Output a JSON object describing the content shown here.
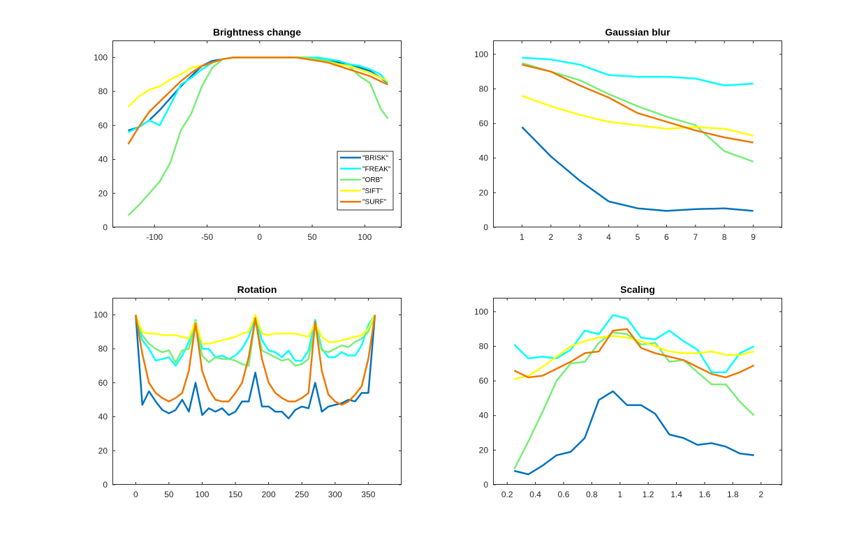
{
  "chart_data": [
    {
      "type": "line",
      "title": "Brightness change",
      "xlim": [
        -140,
        135
      ],
      "ylim": [
        0,
        110
      ],
      "xticks": [
        -100,
        -50,
        0,
        50,
        100
      ],
      "yticks": [
        0,
        20,
        40,
        60,
        80,
        100
      ],
      "legend": "bottom-right",
      "series": [
        {
          "name": "\"BRISK\"",
          "color": "#0072BD",
          "x": [
            -125,
            -115,
            -105,
            -95,
            -85,
            -75,
            -65,
            -55,
            -45,
            -35,
            -25,
            -15,
            -5,
            5,
            15,
            25,
            35,
            45,
            55,
            65,
            75,
            85,
            95,
            105,
            115,
            122
          ],
          "y": [
            57,
            59,
            63,
            69,
            76,
            83,
            89,
            95,
            98,
            99,
            100,
            100,
            100,
            100,
            100,
            100,
            100,
            100,
            99,
            98,
            97,
            96,
            94,
            92,
            88,
            85
          ]
        },
        {
          "name": "\"FREAK\"",
          "color": "#00FFFF",
          "x": [
            -125,
            -115,
            -105,
            -95,
            -85,
            -75,
            -65,
            -55,
            -45,
            -35,
            -25,
            -15,
            -5,
            5,
            15,
            25,
            35,
            45,
            55,
            65,
            75,
            85,
            95,
            105,
            115,
            122
          ],
          "y": [
            56,
            59,
            63,
            60,
            72,
            84,
            88,
            93,
            97,
            99,
            100,
            100,
            100,
            100,
            100,
            100,
            100,
            100,
            100,
            99,
            98,
            96,
            95,
            93,
            90,
            85
          ]
        },
        {
          "name": "\"ORB\"",
          "color": "#77EE77",
          "x": [
            -125,
            -115,
            -105,
            -95,
            -85,
            -75,
            -65,
            -55,
            -45,
            -35,
            -25,
            -15,
            -5,
            5,
            15,
            25,
            35,
            45,
            55,
            65,
            75,
            85,
            95,
            105,
            115,
            122
          ],
          "y": [
            7,
            13,
            20,
            27,
            38,
            57,
            67,
            83,
            94,
            99,
            100,
            100,
            100,
            100,
            100,
            100,
            100,
            100,
            99,
            98,
            96,
            95,
            89,
            85,
            70,
            64
          ]
        },
        {
          "name": "\"SIFT\"",
          "color": "#FFFF00",
          "x": [
            -125,
            -115,
            -105,
            -95,
            -85,
            -75,
            -65,
            -55,
            -45,
            -35,
            -25,
            -15,
            -5,
            5,
            15,
            25,
            35,
            45,
            55,
            65,
            75,
            85,
            95,
            105,
            115,
            122
          ],
          "y": [
            71,
            77,
            81,
            83,
            87,
            90,
            94,
            95,
            97,
            99,
            100,
            100,
            100,
            100,
            100,
            100,
            100,
            99,
            98,
            97,
            96,
            95,
            93,
            91,
            88,
            86
          ]
        },
        {
          "name": "\"SURF\"",
          "color": "#EE7700",
          "x": [
            -125,
            -115,
            -105,
            -95,
            -85,
            -75,
            -65,
            -55,
            -45,
            -35,
            -25,
            -15,
            -5,
            5,
            15,
            25,
            35,
            45,
            55,
            65,
            75,
            85,
            95,
            105,
            115,
            122
          ],
          "y": [
            49,
            59,
            68,
            74,
            80,
            86,
            91,
            95,
            97,
            99,
            100,
            100,
            100,
            100,
            100,
            100,
            100,
            99,
            98,
            97,
            95,
            93,
            91,
            89,
            86,
            84
          ]
        }
      ]
    },
    {
      "type": "line",
      "title": "Gaussian blur",
      "xlim": [
        0,
        10
      ],
      "ylim": [
        0,
        108
      ],
      "xticks": [
        1,
        2,
        3,
        4,
        5,
        6,
        7,
        8,
        9
      ],
      "yticks": [
        0,
        20,
        40,
        60,
        80,
        100
      ],
      "series": [
        {
          "color": "#0072BD",
          "x": [
            1,
            2,
            3,
            4,
            5,
            6,
            7,
            8,
            9
          ],
          "y": [
            58,
            41,
            27,
            15,
            11,
            9.5,
            10.5,
            11,
            9.5
          ]
        },
        {
          "color": "#00FFFF",
          "x": [
            1,
            2,
            3,
            4,
            5,
            6,
            7,
            8,
            9
          ],
          "y": [
            98,
            97,
            94,
            88,
            87,
            87,
            86,
            82,
            83
          ]
        },
        {
          "color": "#77EE77",
          "x": [
            1,
            2,
            3,
            4,
            5,
            6,
            7,
            8,
            9
          ],
          "y": [
            95,
            90,
            85,
            77,
            70,
            64,
            59,
            44,
            38
          ]
        },
        {
          "color": "#FFFF00",
          "x": [
            1,
            2,
            3,
            4,
            5,
            6,
            7,
            8,
            9
          ],
          "y": [
            76,
            70,
            65,
            61,
            59,
            57,
            58,
            57,
            53
          ]
        },
        {
          "color": "#EE7700",
          "x": [
            1,
            2,
            3,
            4,
            5,
            6,
            7,
            8,
            9
          ],
          "y": [
            94,
            90,
            82,
            75,
            66,
            61,
            56,
            52,
            49
          ]
        }
      ]
    },
    {
      "type": "line",
      "title": "Rotation",
      "xlim": [
        -35,
        400
      ],
      "ylim": [
        0,
        110
      ],
      "xticks": [
        0,
        50,
        100,
        150,
        200,
        250,
        300,
        350
      ],
      "yticks": [
        0,
        20,
        40,
        60,
        80,
        100
      ],
      "series": [
        {
          "color": "#0072BD",
          "x": [
            0,
            10,
            20,
            30,
            40,
            50,
            60,
            70,
            80,
            90,
            100,
            110,
            120,
            130,
            140,
            150,
            160,
            170,
            180,
            190,
            200,
            210,
            220,
            230,
            240,
            250,
            260,
            270,
            280,
            290,
            300,
            310,
            320,
            330,
            340,
            350,
            360
          ],
          "y": [
            100,
            47,
            55,
            49,
            44,
            42,
            44,
            50,
            43,
            60,
            41,
            45,
            43,
            45,
            41,
            43,
            49,
            49,
            66,
            46,
            46,
            43,
            43,
            39,
            44,
            46,
            45,
            60,
            43,
            46,
            47,
            48,
            50,
            49,
            54,
            54,
            100
          ]
        },
        {
          "color": "#00FFFF",
          "x": [
            0,
            10,
            20,
            30,
            40,
            50,
            60,
            70,
            80,
            90,
            100,
            110,
            120,
            130,
            140,
            150,
            160,
            170,
            180,
            190,
            200,
            210,
            220,
            230,
            240,
            250,
            260,
            270,
            280,
            290,
            300,
            310,
            320,
            330,
            340,
            350,
            360
          ],
          "y": [
            100,
            85,
            80,
            73,
            74,
            75,
            70,
            76,
            84,
            97,
            80,
            80,
            75,
            76,
            74,
            76,
            80,
            87,
            99,
            85,
            79,
            78,
            75,
            79,
            73,
            73,
            79,
            97,
            80,
            75,
            75,
            78,
            76,
            76,
            82,
            94,
            100
          ]
        },
        {
          "color": "#77EE77",
          "x": [
            0,
            10,
            20,
            30,
            40,
            50,
            60,
            70,
            80,
            90,
            100,
            110,
            120,
            130,
            140,
            150,
            160,
            170,
            180,
            190,
            200,
            210,
            220,
            230,
            240,
            250,
            260,
            270,
            280,
            290,
            300,
            310,
            320,
            330,
            340,
            350,
            360
          ],
          "y": [
            100,
            88,
            83,
            80,
            78,
            79,
            72,
            79,
            80,
            94,
            76,
            72,
            75,
            74,
            74,
            73,
            71,
            70,
            97,
            79,
            77,
            75,
            73,
            74,
            70,
            71,
            74,
            94,
            79,
            78,
            80,
            82,
            81,
            84,
            86,
            90,
            100
          ]
        },
        {
          "color": "#FFFF00",
          "x": [
            0,
            10,
            20,
            30,
            40,
            50,
            60,
            70,
            80,
            90,
            100,
            110,
            120,
            130,
            140,
            150,
            160,
            170,
            180,
            190,
            200,
            210,
            220,
            230,
            240,
            250,
            260,
            270,
            280,
            290,
            300,
            310,
            320,
            330,
            340,
            350,
            360
          ],
          "y": [
            100,
            90,
            89,
            89,
            88,
            88,
            88,
            87,
            86,
            96,
            83,
            83,
            84,
            85,
            86,
            87,
            89,
            90,
            100,
            89,
            88,
            89,
            89,
            89,
            89,
            88,
            87,
            95,
            87,
            84,
            84,
            85,
            86,
            87,
            88,
            92,
            100
          ]
        },
        {
          "color": "#EE7700",
          "x": [
            0,
            10,
            20,
            30,
            40,
            50,
            60,
            70,
            80,
            90,
            100,
            110,
            120,
            130,
            140,
            150,
            160,
            170,
            180,
            190,
            200,
            210,
            220,
            230,
            240,
            250,
            260,
            270,
            280,
            290,
            300,
            310,
            320,
            330,
            340,
            350,
            360
          ],
          "y": [
            100,
            77,
            60,
            54,
            51,
            49,
            51,
            54,
            67,
            95,
            67,
            56,
            50,
            49,
            49,
            54,
            60,
            75,
            98,
            74,
            60,
            54,
            51,
            49,
            49,
            51,
            54,
            96,
            67,
            53,
            49,
            47,
            49,
            53,
            58,
            74,
            100
          ]
        }
      ]
    },
    {
      "type": "line",
      "title": "Scaling",
      "xlim": [
        0.1,
        2.15
      ],
      "ylim": [
        0,
        108
      ],
      "xticks": [
        0.2,
        0.4,
        0.6,
        0.8,
        1,
        1.2,
        1.4,
        1.6,
        1.8,
        2
      ],
      "yticks": [
        0,
        20,
        40,
        60,
        80,
        100
      ],
      "series": [
        {
          "color": "#0072BD",
          "x": [
            0.25,
            0.35,
            0.45,
            0.55,
            0.65,
            0.75,
            0.85,
            0.95,
            1.05,
            1.15,
            1.25,
            1.35,
            1.45,
            1.55,
            1.65,
            1.75,
            1.85,
            1.95
          ],
          "y": [
            8,
            6,
            11,
            17,
            19,
            27,
            49,
            54,
            46,
            46,
            41,
            29,
            27,
            23,
            24,
            22,
            18,
            17
          ]
        },
        {
          "color": "#00FFFF",
          "x": [
            0.25,
            0.35,
            0.45,
            0.55,
            0.65,
            0.75,
            0.85,
            0.95,
            1.05,
            1.15,
            1.25,
            1.35,
            1.45,
            1.55,
            1.65,
            1.75,
            1.85,
            1.95
          ],
          "y": [
            81,
            73,
            74,
            73,
            78,
            89,
            87,
            98,
            96,
            85,
            84,
            89,
            83,
            78,
            65,
            65,
            76,
            80
          ]
        },
        {
          "color": "#77EE77",
          "x": [
            0.25,
            0.35,
            0.45,
            0.55,
            0.65,
            0.75,
            0.85,
            0.95,
            1.05,
            1.15,
            1.25,
            1.35,
            1.45,
            1.55,
            1.65,
            1.75,
            1.85,
            1.95
          ],
          "y": [
            9,
            25,
            42,
            60,
            70,
            71,
            82,
            88,
            87,
            81,
            82,
            71,
            72,
            65,
            58,
            58,
            48,
            40
          ]
        },
        {
          "color": "#FFFF00",
          "x": [
            0.25,
            0.35,
            0.45,
            0.55,
            0.65,
            0.75,
            0.85,
            0.95,
            1.05,
            1.15,
            1.25,
            1.35,
            1.45,
            1.55,
            1.65,
            1.75,
            1.85,
            1.95
          ],
          "y": [
            61,
            63,
            68,
            74,
            80,
            83,
            85,
            86,
            85,
            83,
            80,
            77,
            76,
            76,
            77,
            75,
            75,
            77
          ]
        },
        {
          "color": "#EE7700",
          "x": [
            0.25,
            0.35,
            0.45,
            0.55,
            0.65,
            0.75,
            0.85,
            0.95,
            1.05,
            1.15,
            1.25,
            1.35,
            1.45,
            1.55,
            1.65,
            1.75,
            1.85,
            1.95
          ],
          "y": [
            66,
            62,
            63,
            67,
            71,
            76,
            77,
            89,
            90,
            79,
            76,
            74,
            72,
            68,
            64,
            62,
            65,
            69
          ]
        }
      ]
    }
  ]
}
